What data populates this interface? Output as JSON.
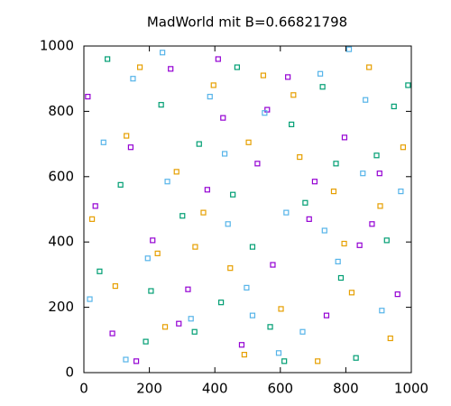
{
  "chart_data": {
    "type": "scatter",
    "title": "MadWorld mit B=0.66821798",
    "xlim": [
      0,
      1000
    ],
    "ylim": [
      0,
      1000
    ],
    "xticks": [
      0,
      200,
      400,
      600,
      800,
      1000
    ],
    "yticks": [
      0,
      200,
      400,
      600,
      800,
      1000
    ],
    "series": [
      {
        "color": "#9400d3",
        "x": [
          12,
          87,
          143,
          210,
          265,
          318,
          377,
          425,
          482,
          530,
          577,
          623,
          688,
          741,
          796,
          842,
          903,
          958,
          35,
          160,
          290,
          410,
          560,
          705,
          880
        ],
        "values": [
          845,
          120,
          690,
          405,
          930,
          255,
          560,
          780,
          85,
          640,
          330,
          905,
          470,
          175,
          720,
          390,
          610,
          240,
          510,
          35,
          150,
          960,
          805,
          585,
          455
        ]
      },
      {
        "color": "#009e73",
        "x": [
          48,
          112,
          189,
          236,
          301,
          352,
          419,
          468,
          515,
          569,
          634,
          676,
          729,
          785,
          831,
          894,
          947,
          72,
          205,
          338,
          455,
          612,
          770,
          925,
          990
        ],
        "values": [
          310,
          575,
          95,
          820,
          480,
          700,
          215,
          935,
          385,
          140,
          760,
          520,
          875,
          290,
          45,
          665,
          815,
          960,
          250,
          125,
          545,
          35,
          640,
          405,
          880
        ]
      },
      {
        "color": "#e69f00",
        "x": [
          25,
          96,
          171,
          248,
          283,
          340,
          396,
          447,
          503,
          548,
          602,
          659,
          714,
          763,
          818,
          871,
          936,
          130,
          225,
          365,
          490,
          640,
          795,
          905,
          975
        ],
        "values": [
          470,
          265,
          935,
          140,
          615,
          385,
          880,
          320,
          705,
          910,
          195,
          660,
          35,
          555,
          245,
          935,
          105,
          725,
          365,
          490,
          55,
          850,
          395,
          510,
          690
        ]
      },
      {
        "color": "#56b4e9",
        "x": [
          60,
          128,
          195,
          255,
          327,
          385,
          440,
          497,
          552,
          618,
          668,
          722,
          776,
          852,
          910,
          968,
          18,
          240,
          430,
          595,
          735,
          860,
          150,
          515,
          810
        ],
        "values": [
          705,
          40,
          350,
          585,
          165,
          845,
          455,
          260,
          795,
          490,
          125,
          915,
          340,
          610,
          190,
          555,
          225,
          980,
          670,
          60,
          435,
          835,
          900,
          175,
          990
        ]
      }
    ]
  }
}
